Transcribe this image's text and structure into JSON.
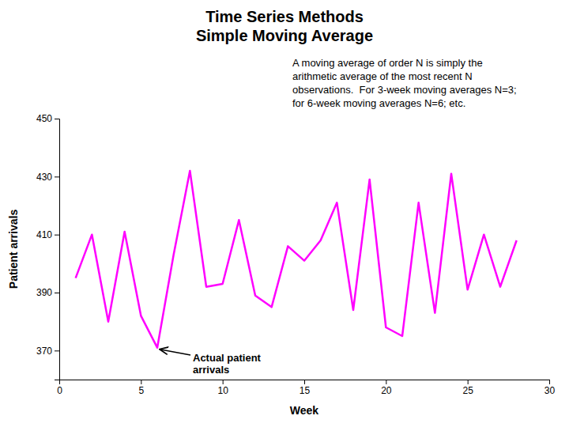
{
  "chart_data": {
    "type": "line",
    "title": "Time Series Methods\nSimple Moving Average",
    "x_label": "Week",
    "y_label": "Patient arrivals",
    "x": [
      1,
      2,
      3,
      4,
      5,
      6,
      7,
      8,
      9,
      10,
      11,
      12,
      13,
      14,
      15,
      16,
      17,
      18,
      19,
      20,
      21,
      22,
      23,
      24,
      25,
      26,
      27,
      28
    ],
    "values": [
      395,
      410,
      380,
      411,
      382,
      371,
      403,
      432,
      392,
      393,
      415,
      389,
      385,
      406,
      401,
      408,
      421,
      384,
      429,
      378,
      375,
      421,
      383,
      431,
      391,
      410,
      392,
      408
    ],
    "color": "#FF00FF",
    "xlim": [
      0,
      30
    ],
    "ylim": [
      360,
      450
    ],
    "xticks": [
      0,
      5,
      10,
      15,
      20,
      25,
      30
    ],
    "yticks": [
      370,
      390,
      410,
      430,
      450
    ],
    "grid": false,
    "annotations": [
      {
        "text": "A moving average of order N is simply the\narithmetic average of the most recent N\nobservations.  For 3-week moving averages N=3;\nfor 6-week moving averages N=6; etc."
      },
      {
        "text": "Actual patient\narrivals",
        "x": 6,
        "y": 371
      }
    ]
  }
}
